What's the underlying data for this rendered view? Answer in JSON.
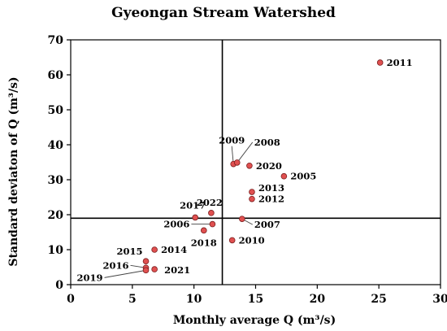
{
  "chart_data": {
    "type": "scatter",
    "title": "Gyeongan Stream Watershed",
    "xlabel": "Monthly average Q (m³/s)",
    "ylabel": "Standard deviaton of Q (m³/s)",
    "xlim": [
      0,
      30
    ],
    "ylim": [
      0,
      70
    ],
    "xticks": [
      0,
      5,
      10,
      15,
      20,
      25,
      30
    ],
    "yticks": [
      0,
      10,
      20,
      30,
      40,
      50,
      60,
      70
    ],
    "grid": false,
    "reference_lines": {
      "x": 12.3,
      "y": 19.0
    },
    "point_color": "#e05050",
    "points": [
      {
        "label": "2011",
        "x": 25.1,
        "y": 63.5
      },
      {
        "label": "2009",
        "x": 13.2,
        "y": 34.5
      },
      {
        "label": "2008",
        "x": 13.5,
        "y": 34.9
      },
      {
        "label": "2020",
        "x": 14.5,
        "y": 34.0
      },
      {
        "label": "2005",
        "x": 17.3,
        "y": 31.0
      },
      {
        "label": "2013",
        "x": 14.7,
        "y": 26.5
      },
      {
        "label": "2012",
        "x": 14.7,
        "y": 24.5
      },
      {
        "label": "2022",
        "x": 11.4,
        "y": 20.5
      },
      {
        "label": "2017",
        "x": 10.1,
        "y": 19.2
      },
      {
        "label": "2007",
        "x": 13.9,
        "y": 18.8
      },
      {
        "label": "2006",
        "x": 11.5,
        "y": 17.3
      },
      {
        "label": "2018",
        "x": 10.8,
        "y": 15.5
      },
      {
        "label": "2010",
        "x": 13.1,
        "y": 12.7
      },
      {
        "label": "2015",
        "x": 6.1,
        "y": 6.7
      },
      {
        "label": "2014",
        "x": 6.8,
        "y": 10.0
      },
      {
        "label": "2016",
        "x": 6.1,
        "y": 4.8
      },
      {
        "label": "2021",
        "x": 6.8,
        "y": 4.4
      },
      {
        "label": "2019",
        "x": 6.1,
        "y": 4.1
      }
    ]
  }
}
